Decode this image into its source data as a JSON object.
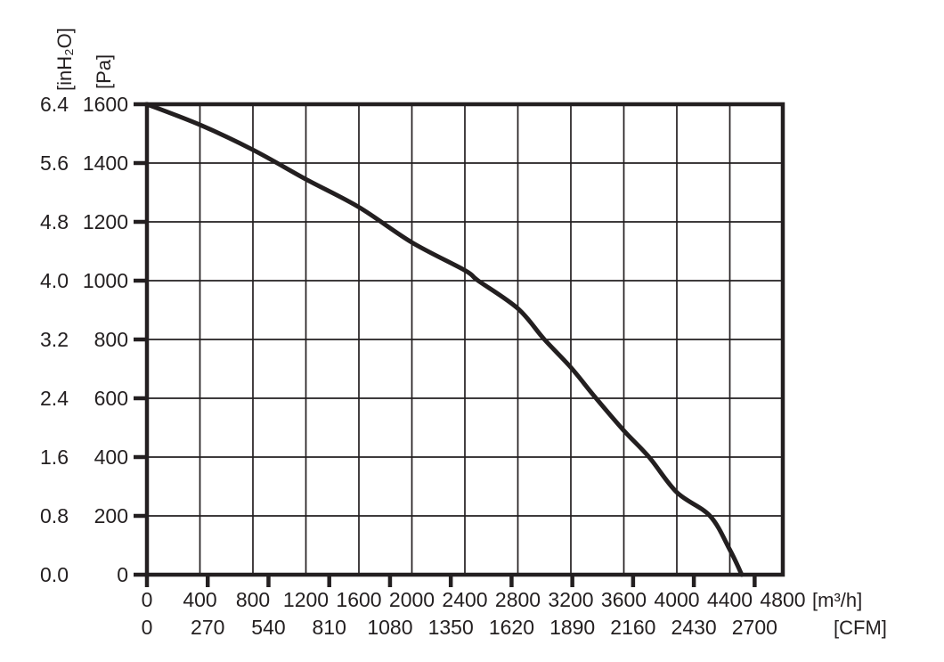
{
  "figure": {
    "background": "#ffffff",
    "ink_color": "#231f20"
  },
  "chart_data": {
    "type": "line",
    "title": "",
    "grid": true,
    "legend": null,
    "x_axis": {
      "primary": {
        "unit_label": "[m³/h]",
        "range": [
          0,
          4800
        ],
        "ticks": [
          0,
          400,
          800,
          1200,
          1600,
          2000,
          2400,
          2800,
          3200,
          3600,
          4000,
          4400,
          4800
        ]
      },
      "secondary": {
        "unit_label": "[CFM]",
        "ticks": [
          0,
          270,
          540,
          810,
          1080,
          1350,
          1620,
          1890,
          2160,
          2430,
          2700
        ],
        "conversion_m3h_per_cfm": 1.699
      }
    },
    "y_axis": {
      "primary": {
        "unit_label": "[Pa]",
        "range": [
          0,
          1600
        ],
        "ticks": [
          1600,
          1400,
          1200,
          1000,
          800,
          600,
          400,
          200,
          0
        ]
      },
      "secondary": {
        "unit_label": "[inH₂O]",
        "ticks": [
          "6.4",
          "5.6",
          "4.8",
          "4.0",
          "3.2",
          "2.4",
          "1.6",
          "0.8",
          "0.0"
        ]
      }
    },
    "series": [
      {
        "name": "fan-performance-curve",
        "color": "#231f20",
        "points_m3h_pa": [
          [
            0,
            1600
          ],
          [
            400,
            1530
          ],
          [
            800,
            1445
          ],
          [
            1200,
            1345
          ],
          [
            1600,
            1250
          ],
          [
            2000,
            1130
          ],
          [
            2400,
            1035
          ],
          [
            2500,
            1000
          ],
          [
            2800,
            905
          ],
          [
            3000,
            800
          ],
          [
            3200,
            705
          ],
          [
            3390,
            600
          ],
          [
            3600,
            490
          ],
          [
            3790,
            400
          ],
          [
            4000,
            280
          ],
          [
            4250,
            200
          ],
          [
            4400,
            85
          ],
          [
            4490,
            0
          ]
        ]
      }
    ]
  }
}
